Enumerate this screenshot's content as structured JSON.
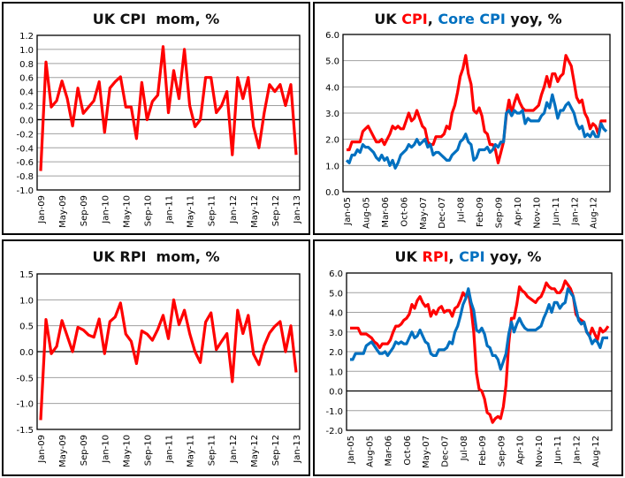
{
  "colors": {
    "red": "#ff0000",
    "blue": "#0070c0",
    "grid": "#a0a0a0",
    "axis": "#000000"
  },
  "chart_data": [
    {
      "id": "cpi_mom",
      "type": "line",
      "title_parts": [
        {
          "text": "UK CPI  mom, %",
          "color": "#111111"
        }
      ],
      "title": "UK CPI  mom, %",
      "x_start": "Jan-09",
      "x_tick_labels": [
        "Jan-09",
        "May-09",
        "Sep-09",
        "Jan-10",
        "May-10",
        "Sep-10",
        "Jan-11",
        "May-11",
        "Sep-11",
        "Jan-12",
        "May-12",
        "Sep-12",
        "Jan-13"
      ],
      "x_tick_every": 4,
      "ylim": [
        -1.0,
        1.2
      ],
      "yticks": [
        -1.0,
        -0.8,
        -0.6,
        -0.4,
        -0.2,
        0.0,
        0.2,
        0.4,
        0.6,
        0.8,
        1.0,
        1.2
      ],
      "ytick_decimals": 1,
      "grid": true,
      "series": [
        {
          "name": "CPI mom",
          "color": "#ff0000",
          "values": [
            -0.73,
            0.82,
            0.18,
            0.27,
            0.55,
            0.3,
            -0.09,
            0.45,
            0.09,
            0.18,
            0.27,
            0.54,
            -0.18,
            0.45,
            0.54,
            0.61,
            0.18,
            0.18,
            -0.27,
            0.53,
            0.0,
            0.26,
            0.35,
            1.04,
            0.1,
            0.7,
            0.3,
            1.0,
            0.2,
            -0.1,
            0.0,
            0.6,
            0.6,
            0.1,
            0.2,
            0.4,
            -0.5,
            0.6,
            0.3,
            0.6,
            -0.1,
            -0.4,
            0.1,
            0.5,
            0.4,
            0.5,
            0.2,
            0.5,
            -0.5
          ]
        }
      ]
    },
    {
      "id": "cpi_core_yoy",
      "type": "line",
      "title_parts": [
        {
          "text": "UK ",
          "color": "#111111"
        },
        {
          "text": "CPI",
          "color": "#ff0000"
        },
        {
          "text": ", ",
          "color": "#111111"
        },
        {
          "text": "Core CPI",
          "color": "#0070c0"
        },
        {
          "text": " yoy, %",
          "color": "#111111"
        }
      ],
      "title": "UK CPI, Core CPI yoy, %",
      "x_start": "Jan-05",
      "x_tick_labels": [
        "Jan-05",
        "Aug-05",
        "Mar-06",
        "Oct-06",
        "May-07",
        "Dec-07",
        "Jul-08",
        "Feb-09",
        "Sep-09",
        "Apr-10",
        "Nov-10",
        "Jun-11",
        "Jan-12",
        "Aug-12"
      ],
      "x_tick_every": 7,
      "ylim": [
        0.0,
        6.0
      ],
      "yticks": [
        0.0,
        1.0,
        2.0,
        3.0,
        4.0,
        5.0,
        6.0
      ],
      "ytick_decimals": 1,
      "grid": true,
      "series": [
        {
          "name": "CPI",
          "color": "#ff0000",
          "values": [
            1.6,
            1.6,
            1.9,
            1.9,
            1.9,
            1.9,
            2.3,
            2.4,
            2.5,
            2.3,
            2.1,
            1.9,
            1.9,
            2.0,
            1.8,
            2.0,
            2.2,
            2.5,
            2.4,
            2.5,
            2.4,
            2.4,
            2.7,
            3.0,
            2.7,
            2.8,
            3.1,
            2.8,
            2.5,
            2.4,
            1.9,
            1.8,
            1.8,
            2.1,
            2.1,
            2.1,
            2.2,
            2.5,
            2.4,
            3.0,
            3.3,
            3.8,
            4.4,
            4.7,
            5.2,
            4.5,
            4.1,
            3.1,
            3.0,
            3.2,
            2.9,
            2.3,
            2.2,
            1.8,
            1.8,
            1.6,
            1.1,
            1.5,
            1.9,
            2.9,
            3.5,
            3.0,
            3.4,
            3.7,
            3.4,
            3.2,
            3.1,
            3.1,
            3.1,
            3.1,
            3.2,
            3.3,
            3.7,
            4.0,
            4.4,
            4.0,
            4.5,
            4.5,
            4.2,
            4.4,
            4.5,
            5.2,
            5.0,
            4.8,
            4.2,
            3.6,
            3.4,
            3.5,
            3.0,
            2.8,
            2.4,
            2.6,
            2.5,
            2.2,
            2.7,
            2.7,
            2.7
          ]
        },
        {
          "name": "Core CPI",
          "color": "#0070c0",
          "values": [
            1.2,
            1.1,
            1.4,
            1.4,
            1.6,
            1.5,
            1.8,
            1.7,
            1.7,
            1.6,
            1.5,
            1.3,
            1.2,
            1.4,
            1.2,
            1.3,
            1.0,
            1.2,
            0.9,
            1.1,
            1.4,
            1.5,
            1.6,
            1.8,
            1.7,
            1.8,
            2.0,
            1.8,
            1.9,
            2.0,
            1.7,
            1.8,
            1.4,
            1.5,
            1.5,
            1.4,
            1.3,
            1.2,
            1.2,
            1.4,
            1.5,
            1.6,
            1.9,
            2.0,
            2.2,
            1.9,
            1.8,
            1.2,
            1.3,
            1.6,
            1.6,
            1.6,
            1.7,
            1.5,
            1.6,
            1.8,
            1.7,
            1.9,
            1.9,
            3.0,
            3.1,
            2.9,
            3.1,
            3.0,
            3.0,
            3.1,
            2.6,
            2.8,
            2.7,
            2.7,
            2.7,
            2.7,
            2.9,
            3.0,
            3.4,
            3.2,
            3.7,
            3.3,
            2.8,
            3.1,
            3.1,
            3.3,
            3.4,
            3.2,
            3.0,
            2.6,
            2.4,
            2.5,
            2.1,
            2.2,
            2.1,
            2.3,
            2.1,
            2.1,
            2.6,
            2.4,
            2.3
          ]
        }
      ]
    },
    {
      "id": "rpi_mom",
      "type": "line",
      "title_parts": [
        {
          "text": "UK RPI  mom, %",
          "color": "#111111"
        }
      ],
      "title": "UK RPI  mom, %",
      "x_start": "Jan-09",
      "x_tick_labels": [
        "Jan-09",
        "May-09",
        "Sep-09",
        "Jan-10",
        "May-10",
        "Sep-10",
        "Jan-11",
        "May-11",
        "Sep-11",
        "Jan-12",
        "May-12",
        "Sep-12",
        "Jan-13"
      ],
      "x_tick_every": 4,
      "ylim": [
        -1.5,
        1.5
      ],
      "yticks": [
        -1.5,
        -1.0,
        -0.5,
        0.0,
        0.5,
        1.0,
        1.5
      ],
      "ytick_decimals": 1,
      "grid": true,
      "series": [
        {
          "name": "RPI mom",
          "color": "#ff0000",
          "values": [
            -1.32,
            0.62,
            -0.04,
            0.1,
            0.6,
            0.3,
            0.0,
            0.47,
            0.42,
            0.32,
            0.28,
            0.63,
            -0.04,
            0.58,
            0.67,
            0.94,
            0.34,
            0.2,
            -0.23,
            0.4,
            0.34,
            0.22,
            0.43,
            0.7,
            0.25,
            1.0,
            0.52,
            0.8,
            0.35,
            0.0,
            -0.21,
            0.57,
            0.75,
            0.04,
            0.2,
            0.35,
            -0.58,
            0.8,
            0.35,
            0.7,
            -0.05,
            -0.25,
            0.12,
            0.36,
            0.49,
            0.58,
            0.0,
            0.5,
            -0.4
          ]
        }
      ]
    },
    {
      "id": "rpi_cpi_yoy",
      "type": "line",
      "title_parts": [
        {
          "text": "UK ",
          "color": "#111111"
        },
        {
          "text": "RPI",
          "color": "#ff0000"
        },
        {
          "text": ", ",
          "color": "#111111"
        },
        {
          "text": "CPI",
          "color": "#0070c0"
        },
        {
          "text": " yoy, %",
          "color": "#111111"
        }
      ],
      "title": "UK RPI, CPI yoy, %",
      "x_start": "Jan-05",
      "x_tick_labels": [
        "Jan-05",
        "Aug-05",
        "Mar-06",
        "Oct-06",
        "May-07",
        "Dec-07",
        "Jul-08",
        "Feb-09",
        "Sep-09",
        "Apr-10",
        "Nov-10",
        "Jun-11",
        "Jan-12",
        "Aug-12"
      ],
      "x_tick_every": 7,
      "ylim": [
        -2.0,
        6.0
      ],
      "yticks": [
        -2.0,
        -1.0,
        0.0,
        1.0,
        2.0,
        3.0,
        4.0,
        5.0,
        6.0
      ],
      "ytick_decimals": 1,
      "grid": true,
      "series": [
        {
          "name": "RPI",
          "color": "#ff0000",
          "values": [
            3.2,
            3.2,
            3.2,
            3.2,
            2.9,
            2.9,
            2.9,
            2.8,
            2.7,
            2.5,
            2.4,
            2.2,
            2.4,
            2.4,
            2.4,
            2.6,
            3.0,
            3.3,
            3.3,
            3.4,
            3.6,
            3.7,
            3.9,
            4.4,
            4.2,
            4.6,
            4.8,
            4.5,
            4.3,
            4.4,
            3.8,
            4.1,
            3.9,
            4.2,
            4.3,
            4.0,
            4.1,
            4.1,
            3.8,
            4.2,
            4.3,
            4.6,
            5.0,
            4.8,
            5.0,
            4.2,
            3.0,
            0.9,
            0.1,
            0.0,
            -0.4,
            -1.1,
            -1.2,
            -1.6,
            -1.4,
            -1.3,
            -1.4,
            -0.8,
            0.3,
            2.4,
            3.7,
            3.7,
            4.4,
            5.3,
            5.1,
            5.0,
            4.8,
            4.7,
            4.6,
            4.5,
            4.7,
            4.8,
            5.1,
            5.5,
            5.3,
            5.2,
            5.2,
            5.0,
            5.0,
            5.2,
            5.6,
            5.4,
            5.2,
            4.8,
            3.9,
            3.7,
            3.6,
            3.5,
            3.0,
            2.8,
            3.2,
            2.9,
            2.6,
            3.2,
            3.0,
            3.1,
            3.3
          ]
        },
        {
          "name": "CPI",
          "color": "#0070c0",
          "values": [
            1.6,
            1.6,
            1.9,
            1.9,
            1.9,
            1.9,
            2.3,
            2.4,
            2.5,
            2.3,
            2.1,
            1.9,
            1.9,
            2.0,
            1.8,
            2.0,
            2.2,
            2.5,
            2.4,
            2.5,
            2.4,
            2.4,
            2.7,
            3.0,
            2.7,
            2.8,
            3.1,
            2.8,
            2.5,
            2.4,
            1.9,
            1.8,
            1.8,
            2.1,
            2.1,
            2.1,
            2.2,
            2.5,
            2.4,
            3.0,
            3.3,
            3.8,
            4.4,
            4.7,
            5.2,
            4.5,
            4.1,
            3.1,
            3.0,
            3.2,
            2.9,
            2.3,
            2.2,
            1.8,
            1.8,
            1.6,
            1.1,
            1.5,
            1.9,
            2.9,
            3.5,
            3.0,
            3.4,
            3.7,
            3.4,
            3.2,
            3.1,
            3.1,
            3.1,
            3.1,
            3.2,
            3.3,
            3.7,
            4.0,
            4.4,
            4.0,
            4.5,
            4.5,
            4.2,
            4.4,
            4.5,
            5.2,
            5.0,
            4.8,
            4.2,
            3.6,
            3.4,
            3.5,
            3.0,
            2.8,
            2.4,
            2.6,
            2.5,
            2.2,
            2.7,
            2.7,
            2.7
          ]
        }
      ]
    }
  ]
}
